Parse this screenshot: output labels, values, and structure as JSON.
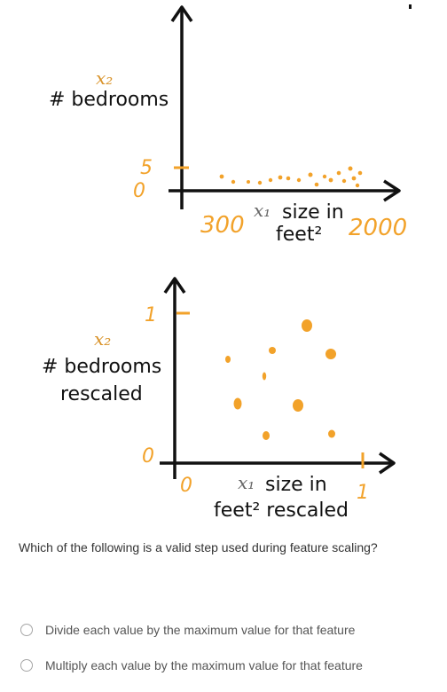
{
  "figure_top": {
    "x_variable": "x₁",
    "x_label_line1": "size in",
    "x_label_line2": "feet²",
    "y_variable": "x₂",
    "y_label_line1": "# bedrooms",
    "y_tick_top": "5",
    "y_tick_bottom": "0",
    "x_tick_min": "300",
    "x_tick_max": "2000"
  },
  "figure_bottom": {
    "x_variable": "x₁",
    "x_label_line1": "size in",
    "x_label_line2": "feet² rescaled",
    "y_variable": "x₂",
    "y_label_line1": "# bedrooms",
    "y_label_line2": "rescaled",
    "y_tick_top": "1",
    "y_tick_bottom": "0",
    "x_tick_min": "0",
    "x_tick_max": "1"
  },
  "question": {
    "text": "Which of the following is a valid step used during feature scaling?"
  },
  "options": [
    {
      "label": "Divide each value by the maximum value for that feature",
      "selected": false
    },
    {
      "label": "Multiply each value by the maximum value for that feature",
      "selected": false
    }
  ],
  "colors": {
    "accent": "#f2a22a",
    "axis": "#111111",
    "text": "#333333",
    "radio_border": "#a6a6a6"
  }
}
